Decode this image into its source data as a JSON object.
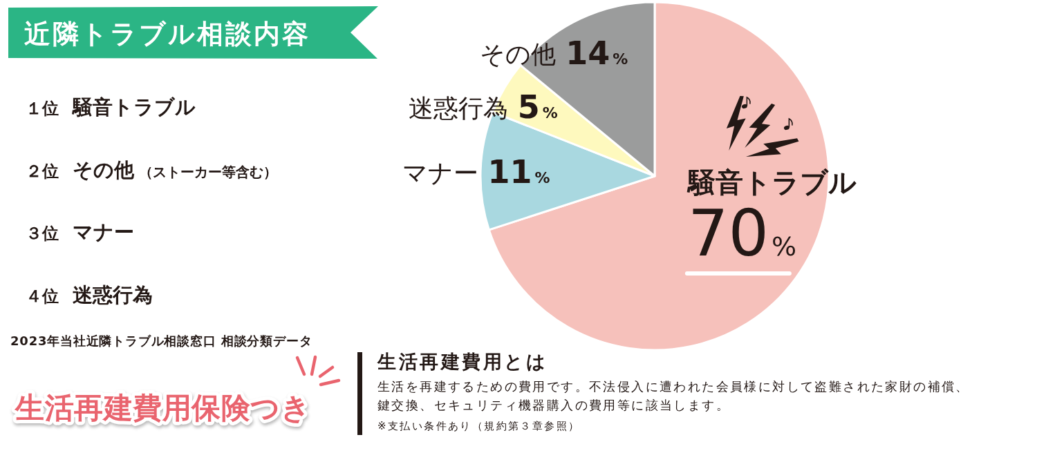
{
  "chart_data": {
    "type": "pie",
    "title": "近隣トラブル相談内容",
    "categories": [
      "騒音トラブル",
      "マナー",
      "迷惑行為",
      "その他"
    ],
    "values": [
      70,
      11,
      5,
      14
    ],
    "colors": [
      "#f6c1bb",
      "#a9d8e0",
      "#fef9be",
      "#9b9c9c"
    ],
    "value_labels": [
      "70%",
      "11%",
      "5%",
      "14%"
    ],
    "annotations": [
      "１位 騒音トラブル",
      "２位 その他 （ストーカー等含む）",
      "３位 マナー",
      "４位 迷惑行為",
      "2023年当社近隣トラブル相談窓口 相談分類データ",
      "生活再建費用保険つき",
      "生活再建費用とは",
      "生活を再建するための費用です。不法侵入に遭われた会員様に対して盗難された家財の補償、",
      "鍵交換、セキュリティ機器購入の費用等に該当します。",
      "※支払い条件あり（規約第３章参照）"
    ]
  }
}
